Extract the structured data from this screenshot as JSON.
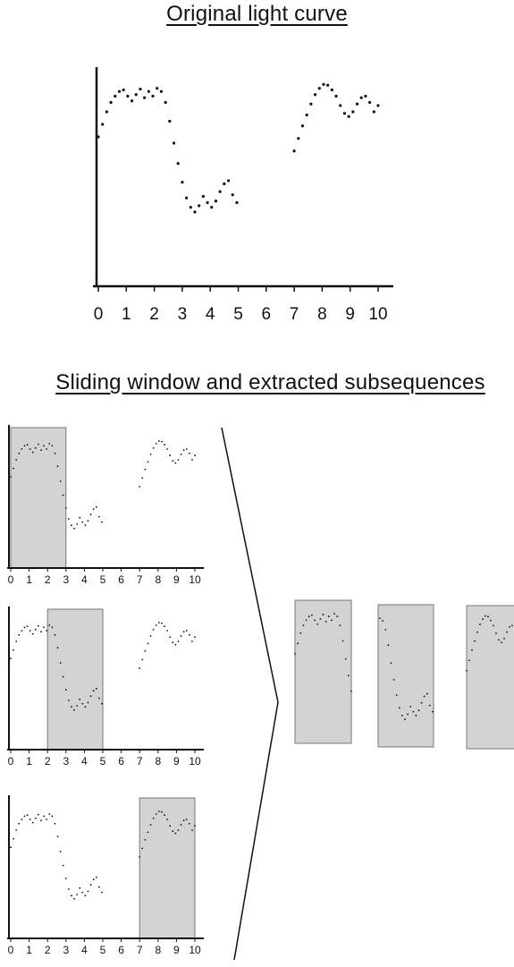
{
  "titles": {
    "original": "Original light curve",
    "sliding": "Sliding window and extracted subsequences"
  },
  "x_ticks": [
    "0",
    "1",
    "2",
    "3",
    "4",
    "5",
    "6",
    "7",
    "8",
    "9",
    "10"
  ],
  "series": {
    "seg1": [
      [
        0,
        6.4
      ],
      [
        0.15,
        7.2
      ],
      [
        0.3,
        8.0
      ],
      [
        0.45,
        8.6
      ],
      [
        0.6,
        9.0
      ],
      [
        0.75,
        9.3
      ],
      [
        0.9,
        9.4
      ],
      [
        1.05,
        9.0
      ],
      [
        1.2,
        8.7
      ],
      [
        1.35,
        9.1
      ],
      [
        1.5,
        9.45
      ],
      [
        1.65,
        8.9
      ],
      [
        1.8,
        9.3
      ],
      [
        1.95,
        9.0
      ],
      [
        2.1,
        9.5
      ],
      [
        2.25,
        9.3
      ],
      [
        2.4,
        8.6
      ],
      [
        2.55,
        7.4
      ],
      [
        2.7,
        6.0
      ],
      [
        2.85,
        4.7
      ],
      [
        3.0,
        3.5
      ],
      [
        3.15,
        2.5
      ],
      [
        3.3,
        1.9
      ],
      [
        3.45,
        1.6
      ],
      [
        3.6,
        2.0
      ],
      [
        3.75,
        2.6
      ],
      [
        3.9,
        2.2
      ],
      [
        4.05,
        1.9
      ],
      [
        4.2,
        2.3
      ],
      [
        4.35,
        2.9
      ],
      [
        4.5,
        3.4
      ],
      [
        4.65,
        3.6
      ],
      [
        4.8,
        2.7
      ],
      [
        4.95,
        2.2
      ]
    ],
    "seg2": [
      [
        7.0,
        5.5
      ],
      [
        7.15,
        6.3
      ],
      [
        7.3,
        7.1
      ],
      [
        7.45,
        7.8
      ],
      [
        7.6,
        8.5
      ],
      [
        7.75,
        9.1
      ],
      [
        7.9,
        9.5
      ],
      [
        8.05,
        9.75
      ],
      [
        8.2,
        9.7
      ],
      [
        8.35,
        9.4
      ],
      [
        8.5,
        9.0
      ],
      [
        8.65,
        8.4
      ],
      [
        8.8,
        7.9
      ],
      [
        8.95,
        7.7
      ],
      [
        9.1,
        8.0
      ],
      [
        9.25,
        8.5
      ],
      [
        9.4,
        8.9
      ],
      [
        9.55,
        9.0
      ],
      [
        9.7,
        8.6
      ],
      [
        9.85,
        8.0
      ],
      [
        10.0,
        8.4
      ]
    ]
  },
  "windows": [
    {
      "label": "window-0-3",
      "x0": 0,
      "x1": 3
    },
    {
      "label": "window-2-5",
      "x0": 2,
      "x1": 5
    },
    {
      "label": "window-7-10",
      "x0": 7,
      "x1": 10
    }
  ],
  "colors": {
    "window_fill": "#d3d3d3",
    "window_border": "#777777",
    "ink": "#111111"
  }
}
